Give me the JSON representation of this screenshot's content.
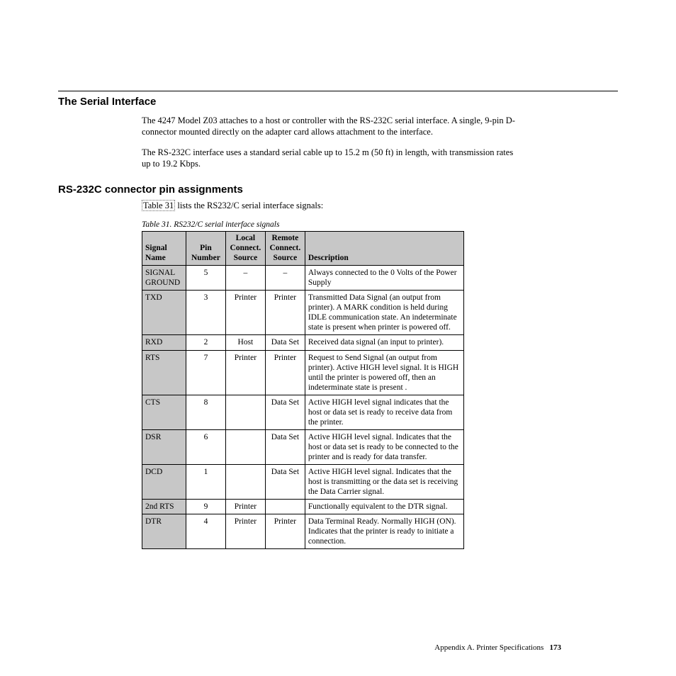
{
  "section1": {
    "title": "The Serial Interface",
    "para1": "The 4247 Model Z03 attaches to a host or controller with the RS-232C serial interface. A single, 9-pin D-connector mounted directly on the adapter card allows attachment to the interface.",
    "para2": "The RS-232C interface uses a standard serial cable up to 15.2 m (50 ft) in length, with transmission rates up to 19.2 Kbps."
  },
  "section2": {
    "title": "RS-232C connector pin assignments",
    "intro_before_link": "",
    "intro_link": "Table 31",
    "intro_after_link": " lists the RS232/C serial interface signals:"
  },
  "table": {
    "caption": "Table 31. RS232/C serial interface signals",
    "headers": {
      "signal": "Signal Name",
      "pin": "Pin Number",
      "local": "Local Connect. Source",
      "remote": "Remote Connect. Source",
      "desc": "Description"
    },
    "rows": [
      {
        "name": "SIGNAL GROUND",
        "pin": "5",
        "local": "–",
        "remote": "–",
        "desc": "Always connected to the 0 Volts of the Power Supply"
      },
      {
        "name": "TXD",
        "pin": "3",
        "local": "Printer",
        "remote": "Printer",
        "desc": "Transmitted Data Signal (an output from printer). A MARK condition is held during IDLE communication state. An indeterminate state is present when printer is powered off."
      },
      {
        "name": "RXD",
        "pin": "2",
        "local": "Host",
        "remote": "Data Set",
        "desc": "Received data signal (an input to printer)."
      },
      {
        "name": "RTS",
        "pin": "7",
        "local": "Printer",
        "remote": "Printer",
        "desc": "Request to Send Signal (an output from printer). Active HIGH level signal. It is HIGH until the printer is powered off, then an indeterminate state is present ."
      },
      {
        "name": "CTS",
        "pin": "8",
        "local": "",
        "remote": "Data Set",
        "desc": "Active HIGH level signal indicates that the host or data set is ready to receive data from the printer."
      },
      {
        "name": "DSR",
        "pin": "6",
        "local": "",
        "remote": "Data Set",
        "desc": "Active HIGH level signal. Indicates that the host or data set is ready to be connected to the printer and is ready for data transfer."
      },
      {
        "name": "DCD",
        "pin": "1",
        "local": "",
        "remote": "Data Set",
        "desc": "Active HIGH level signal. Indicates that the host is transmitting or the data set is receiving the Data Carrier signal."
      },
      {
        "name": "2nd RTS",
        "pin": "9",
        "local": "Printer",
        "remote": "",
        "desc": "Functionally equivalent to the DTR signal."
      },
      {
        "name": "DTR",
        "pin": "4",
        "local": "Printer",
        "remote": "Printer",
        "desc": "Data Terminal Ready. Normally HIGH (ON). Indicates that the printer is ready to initiate a connection."
      }
    ]
  },
  "footer": {
    "text": "Appendix A. Printer Specifications",
    "page": "173"
  }
}
